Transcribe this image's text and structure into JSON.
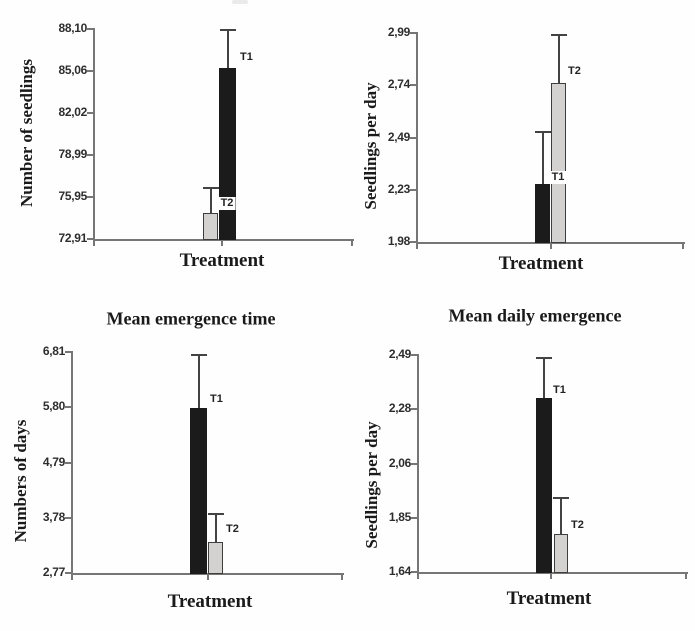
{
  "colors": {
    "black_bar": "#1b1b1b",
    "gray_bar": "#d3d2d1",
    "gray_bar_border": "#3e3e3e",
    "axis": "#767676",
    "error_bar": "#434343",
    "text": "#1a1a1a",
    "tick_text": "#2d2d2d"
  },
  "chart_data": [
    {
      "type": "bar",
      "title": "",
      "ylabel": "Number of seedlings",
      "xlabel": "Treatment",
      "ytick_labels": [
        "88,10",
        "85,06",
        "82,02",
        "78,99",
        "75,95",
        "72,91"
      ],
      "ylim": [
        72.91,
        88.1
      ],
      "grid": false,
      "legend": "bar labels T1/T2 beside bars",
      "categories": [
        "T2",
        "T1"
      ],
      "series": [
        {
          "name": "T2",
          "fill": "gray",
          "value": 74.8,
          "error_top": 76.6
        },
        {
          "name": "T1",
          "fill": "black",
          "value": 85.3,
          "error_top": 88.0
        }
      ]
    },
    {
      "type": "bar",
      "title": "",
      "ylabel": "Seedlings per day",
      "xlabel": "Treatment",
      "ytick_labels": [
        "2,99",
        "2,74",
        "2,49",
        "2,23",
        "1,98"
      ],
      "ylim": [
        1.98,
        2.99
      ],
      "grid": false,
      "legend": "bar labels T1/T2 beside bars",
      "categories": [
        "T1",
        "T2"
      ],
      "series": [
        {
          "name": "T1",
          "fill": "black",
          "value": 2.26,
          "error_top": 2.51
        },
        {
          "name": "T2",
          "fill": "gray",
          "value": 2.75,
          "error_top": 2.98
        }
      ]
    },
    {
      "type": "bar",
      "title": "Mean emergence time",
      "ylabel": "Numbers of days",
      "xlabel": "Treatment",
      "ytick_labels": [
        "6,81",
        "5,80",
        "4,79",
        "3,78",
        "2,77"
      ],
      "ylim": [
        2.77,
        6.81
      ],
      "grid": false,
      "legend": "bar labels T1/T2 beside bars",
      "categories": [
        "T1",
        "T2"
      ],
      "series": [
        {
          "name": "T1",
          "fill": "black",
          "value": 5.79,
          "error_top": 6.76
        },
        {
          "name": "T2",
          "fill": "gray",
          "value": 3.33,
          "error_top": 3.84
        }
      ]
    },
    {
      "type": "bar",
      "title": "Mean daily emergence",
      "ylabel": "Seedlings per day",
      "xlabel": "Treatment",
      "ytick_labels": [
        "2,49",
        "2,28",
        "2,06",
        "1,85",
        "1,64"
      ],
      "ylim": [
        1.64,
        2.49
      ],
      "grid": false,
      "legend": "bar labels T1/T2 beside bars",
      "categories": [
        "T1",
        "T2"
      ],
      "series": [
        {
          "name": "T1",
          "fill": "black",
          "value": 2.32,
          "error_top": 2.48
        },
        {
          "name": "T2",
          "fill": "gray",
          "value": 1.79,
          "error_top": 1.93
        }
      ]
    }
  ]
}
